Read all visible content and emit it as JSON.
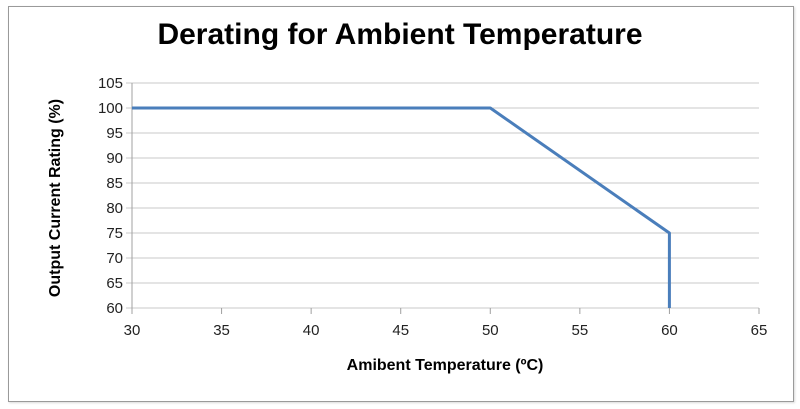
{
  "chart_data": {
    "type": "line",
    "title": "Derating for Ambient Temperature",
    "xlabel": "Amibent Temperature (ºC)",
    "ylabel": "Output Current Rating (%)",
    "xlim": [
      30,
      65
    ],
    "ylim": [
      60,
      105
    ],
    "x_ticks": [
      30,
      35,
      40,
      45,
      50,
      55,
      60,
      65
    ],
    "y_ticks": [
      60,
      65,
      70,
      75,
      80,
      85,
      90,
      95,
      100,
      105
    ],
    "grid": "horizontal",
    "series": [
      {
        "color": "#4a7ebb",
        "points": [
          [
            30,
            100
          ],
          [
            50,
            100
          ],
          [
            60,
            75
          ],
          [
            60,
            60
          ]
        ]
      }
    ]
  }
}
